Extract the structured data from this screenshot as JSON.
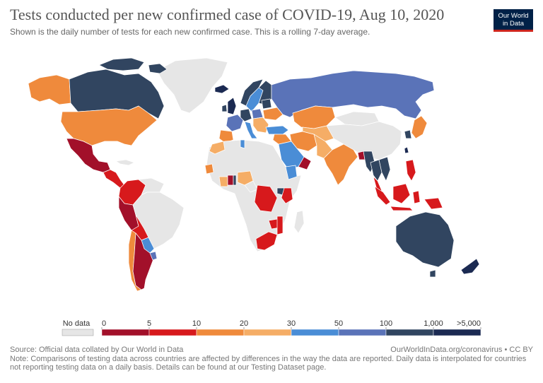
{
  "title": "Tests conducted per new confirmed case of COVID-19, Aug 10, 2020",
  "subtitle": "Shown is the daily number of tests for each new confirmed case. This is a rolling 7-day average.",
  "logo": {
    "line1": "Our World",
    "line2": "in Data"
  },
  "legend": {
    "no_data_label": "No data",
    "tick_labels": [
      "0",
      "5",
      "10",
      "20",
      "30",
      "50",
      "100",
      "1,000",
      ">5,000"
    ],
    "bin_colors": [
      "#a2102a",
      "#d7191c",
      "#ef8a3c",
      "#f5ad66",
      "#4a8dd6",
      "#5a73b8",
      "#314560",
      "#1b2a52"
    ],
    "no_data_color": "#e6e6e6"
  },
  "footer": {
    "source": "Source: Official data collated by Our World in Data",
    "url": "OurWorldInData.org/coronavirus • CC BY",
    "note": "Note: Comparisons of testing data across countries are affected by differences in the way the data are reported. Daily data is interpolated for countries not reporting testing data on a daily basis. Details can be found at our Testing Dataset page."
  },
  "colors": {
    "land_no_data": "#e6e6e6",
    "border": "#ffffff",
    "ocean": "#ffffff"
  }
}
